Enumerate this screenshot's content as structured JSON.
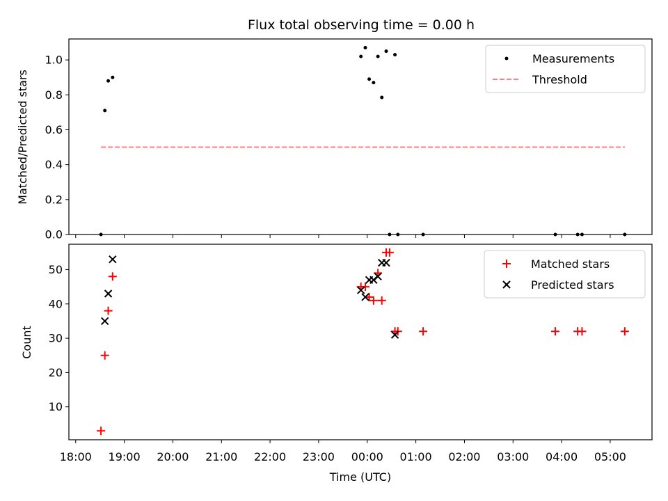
{
  "chart_data": [
    {
      "type": "scatter",
      "title": "Flux total observing time = 0.00 h",
      "xlabel": "",
      "ylabel": "Matched/Predicted stars",
      "x_unit": "hours since 18:00 UTC",
      "xlim": [
        -0.14,
        11.86
      ],
      "ylim": [
        0.0,
        1.12
      ],
      "yticks": [
        0.0,
        0.2,
        0.4,
        0.6,
        0.8,
        1.0
      ],
      "ytick_labels": [
        "0.0",
        "0.2",
        "0.4",
        "0.6",
        "0.8",
        "1.0"
      ],
      "legend_position": "top-right",
      "series": [
        {
          "name": "Measurements",
          "marker": "dot",
          "color": "#000000",
          "x": [
            0.52,
            0.6,
            0.67,
            0.76,
            5.87,
            5.96,
            6.04,
            6.13,
            6.22,
            6.3,
            6.39,
            6.46,
            6.57,
            6.63,
            7.15,
            9.87,
            10.33,
            10.42,
            11.3
          ],
          "y": [
            0.0,
            0.71,
            0.88,
            0.9,
            1.02,
            1.07,
            0.89,
            0.87,
            1.02,
            0.785,
            1.05,
            0.0,
            1.03,
            0.0,
            0.0,
            0.0,
            0.0,
            0.0,
            0.0
          ]
        },
        {
          "name": "Threshold",
          "marker": "dashed-line",
          "color": "#ff7f7f",
          "x": [
            0.52,
            11.3
          ],
          "y": [
            0.5,
            0.5
          ]
        }
      ]
    },
    {
      "type": "scatter",
      "title": "",
      "xlabel": "Time (UTC)",
      "ylabel": "Count",
      "x_unit": "hours since 18:00 UTC",
      "xlim": [
        -0.14,
        11.86
      ],
      "ylim": [
        0.4,
        57.4
      ],
      "yticks": [
        10,
        20,
        30,
        40,
        50
      ],
      "ytick_labels": [
        "10",
        "20",
        "30",
        "40",
        "50"
      ],
      "xticks": [
        0,
        1,
        2,
        3,
        4,
        5,
        6,
        7,
        8,
        9,
        10,
        11
      ],
      "xtick_labels": [
        "18:00",
        "19:00",
        "20:00",
        "21:00",
        "22:00",
        "23:00",
        "00:00",
        "01:00",
        "02:00",
        "03:00",
        "04:00",
        "05:00"
      ],
      "legend_position": "top-right",
      "series": [
        {
          "name": "Matched stars",
          "marker": "plus",
          "color": "#ff0000",
          "x": [
            0.52,
            0.6,
            0.67,
            0.76,
            5.87,
            5.96,
            6.04,
            6.13,
            6.22,
            6.3,
            6.39,
            6.46,
            6.57,
            6.63,
            7.15,
            9.87,
            10.33,
            10.42,
            11.3
          ],
          "y": [
            3,
            25,
            38,
            48,
            45,
            45,
            42,
            41,
            49,
            41,
            55,
            55,
            32,
            32,
            32,
            32,
            32,
            32,
            32
          ]
        },
        {
          "name": "Predicted stars",
          "marker": "x",
          "color": "#000000",
          "x": [
            0.6,
            0.67,
            0.76,
            5.87,
            5.96,
            6.04,
            6.13,
            6.22,
            6.3,
            6.39,
            6.57
          ],
          "y": [
            35,
            43,
            53,
            44,
            42,
            47,
            47,
            48,
            52,
            52,
            31
          ]
        }
      ]
    }
  ]
}
